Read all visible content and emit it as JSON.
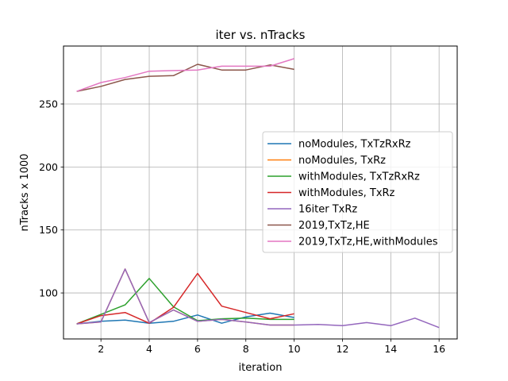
{
  "chart_data": {
    "type": "line",
    "title": "iter vs. nTracks",
    "xlabel": "iteration",
    "ylabel": "nTracks x 1000",
    "xlim": [
      0.45,
      16.75
    ],
    "ylim": [
      63.5,
      296
    ],
    "xticks": [
      2,
      4,
      6,
      8,
      10,
      12,
      14,
      16
    ],
    "yticks": [
      100,
      150,
      200,
      250
    ],
    "grid": true,
    "legend_position": "center-right",
    "series": [
      {
        "name": "noModules, TxTzRxRz",
        "color": "#1f77b4",
        "x": [
          1,
          2,
          3,
          4,
          5,
          6,
          7,
          8,
          9,
          10
        ],
        "y": [
          75.5,
          77.5,
          78.5,
          76.0,
          77.5,
          82.5,
          76.0,
          81.0,
          84.0,
          80.5
        ]
      },
      {
        "name": "noModules, TxRz",
        "color": "#ff7f0e",
        "x": [
          1,
          2,
          3,
          4,
          5,
          6,
          7,
          8,
          9,
          10
        ],
        "y": [
          75.5,
          77.0,
          119.0,
          76.5,
          86.5,
          77.5,
          79.0,
          77.0,
          74.5,
          74.5
        ]
      },
      {
        "name": "withModules, TxTzRxRz",
        "color": "#2ca02c",
        "x": [
          1,
          2,
          3,
          4,
          5,
          6,
          7,
          8,
          9,
          10
        ],
        "y": [
          75.5,
          83.0,
          90.5,
          111.5,
          89.0,
          78.0,
          79.5,
          80.0,
          79.0,
          79.0
        ]
      },
      {
        "name": "withModules, TxRz",
        "color": "#d62728",
        "x": [
          1,
          2,
          3,
          4,
          5,
          6,
          7,
          8,
          9,
          10
        ],
        "y": [
          75.5,
          82.0,
          84.5,
          76.0,
          88.5,
          115.5,
          89.5,
          84.5,
          79.5,
          83.5
        ]
      },
      {
        "name": "16iter TxRz",
        "color": "#9467bd",
        "x": [
          1,
          2,
          3,
          4,
          5,
          6,
          7,
          8,
          9,
          10,
          11,
          12,
          13,
          14,
          15,
          16
        ],
        "y": [
          75.5,
          77.0,
          119.0,
          76.5,
          86.5,
          77.5,
          79.0,
          77.0,
          74.5,
          74.5,
          75.0,
          74.0,
          76.5,
          74.0,
          80.0,
          72.5
        ]
      },
      {
        "name": "2019,TxTz,HE",
        "color": "#8c564b",
        "x": [
          1,
          2,
          3,
          4,
          5,
          6,
          7,
          8,
          9,
          10
        ],
        "y": [
          260.0,
          264.0,
          269.5,
          272.0,
          272.5,
          281.5,
          277.0,
          277.0,
          281.0,
          277.5
        ]
      },
      {
        "name": "2019,TxTz,HE,withModules",
        "color": "#e377c2",
        "x": [
          1,
          2,
          3,
          4,
          5,
          6,
          7,
          8,
          9,
          10
        ],
        "y": [
          260.0,
          267.0,
          271.0,
          276.0,
          276.5,
          277.0,
          280.0,
          280.0,
          280.0,
          286.0
        ]
      }
    ]
  }
}
